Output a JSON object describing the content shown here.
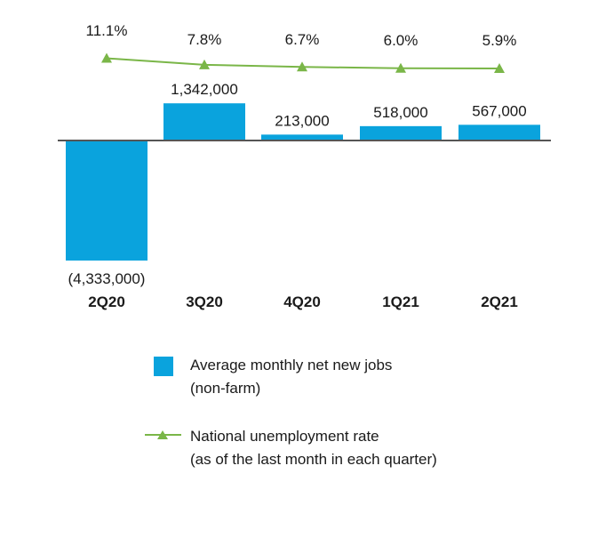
{
  "chart_data": {
    "type": "bar",
    "categories": [
      "2Q20",
      "3Q20",
      "4Q20",
      "1Q21",
      "2Q21"
    ],
    "series": [
      {
        "name": "Average monthly net new jobs (non-farm)",
        "type": "bar",
        "values": [
          -4333000,
          1342000,
          213000,
          518000,
          567000
        ],
        "value_labels": [
          "(4,333,000)",
          "1,342,000",
          "213,000",
          "518,000",
          "567,000"
        ],
        "color": "#0aa3dd"
      },
      {
        "name": "National unemployment rate (as of the last month in each quarter)",
        "type": "line",
        "values": [
          11.1,
          7.8,
          6.7,
          6.0,
          5.9
        ],
        "value_labels": [
          "11.1%",
          "7.8%",
          "6.7%",
          "6.0%",
          "5.9%"
        ],
        "color": "#7ab648",
        "marker": "triangle"
      }
    ],
    "title": "",
    "xlabel": "",
    "ylabel": "",
    "grid": false,
    "legend_position": "bottom"
  },
  "legend": {
    "bars_line1": "Average monthly net new jobs",
    "bars_line2": "(non-farm)",
    "line_line1": "National unemployment rate",
    "line_line2": "(as of the last month in each quarter)"
  },
  "colors": {
    "bar": "#0aa3dd",
    "line": "#7ab648",
    "axis": "#555555"
  }
}
